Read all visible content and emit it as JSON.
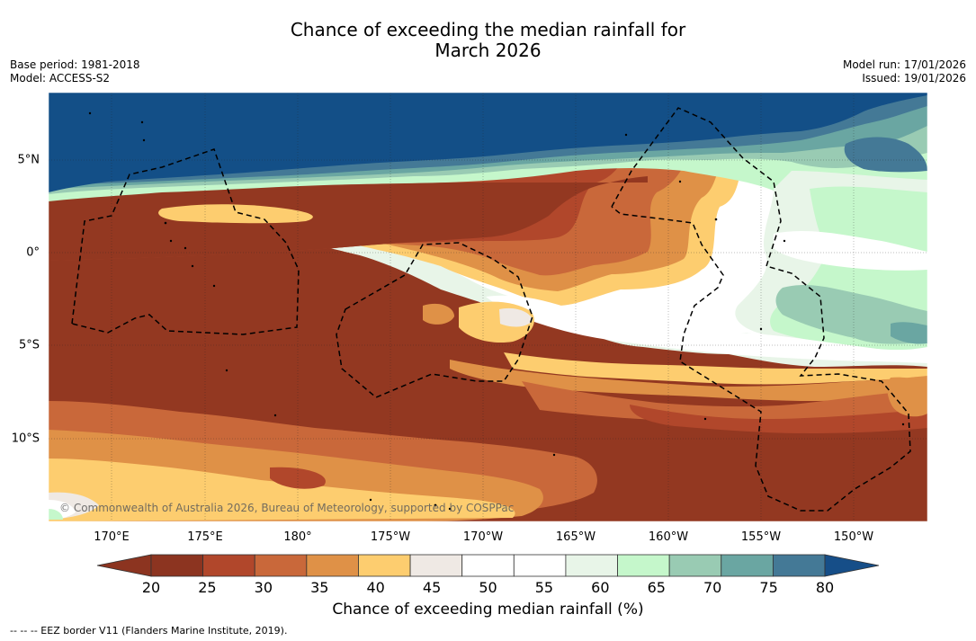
{
  "title_line1": "Chance of exceeding the median rainfall for",
  "title_line2": "March 2026",
  "base_period": "Base period: 1981-2018",
  "model": "Model: ACCESS-S2",
  "model_run": "Model run: 17/01/2026",
  "issued": "Issued: 19/01/2026",
  "copyright": "© Commonwealth of Australia 2026, Bureau of Meteorology, supported by COSPPac",
  "lon_labels": [
    "170°E",
    "175°E",
    "180°",
    "175°W",
    "170°W",
    "165°W",
    "160°W",
    "155°W",
    "150°W"
  ],
  "lat_labels": [
    "5°N",
    "0°",
    "5°S",
    "10°S"
  ],
  "colorbar": {
    "title": "Chance of exceeding median rainfall (%)",
    "ticks": [
      "20",
      "25",
      "30",
      "35",
      "40",
      "45",
      "50",
      "55",
      "60",
      "65",
      "70",
      "75",
      "80"
    ],
    "colors": [
      "#8c3420",
      "#b1472b",
      "#c9683a",
      "#df9147",
      "#fdcd6f",
      "#efe9e4",
      "#ffffff",
      "#ffffff",
      "#e8f5e8",
      "#c5f7cb",
      "#99cbb3",
      "#6aa6a2",
      "#447996"
    ],
    "under_color": "#8c3420",
    "over_color": "#164e88"
  },
  "footnote": "--  --  -- EEZ border V11 (Flanders Marine Institute, 2019).",
  "palette": {
    "deep_blue": "#134f87",
    "blue": "#447996",
    "teal": "#6aa6a2",
    "sage": "#99cbb3",
    "light_green": "#c5f7cb",
    "pale_green": "#e8f5e8",
    "white": "#ffffff",
    "grey_white": "#efe9e4",
    "yellow": "#fdcd6f",
    "orange": "#df9147",
    "dark_orange": "#c9683a",
    "red_brown": "#b1472b",
    "brown": "#933821"
  }
}
